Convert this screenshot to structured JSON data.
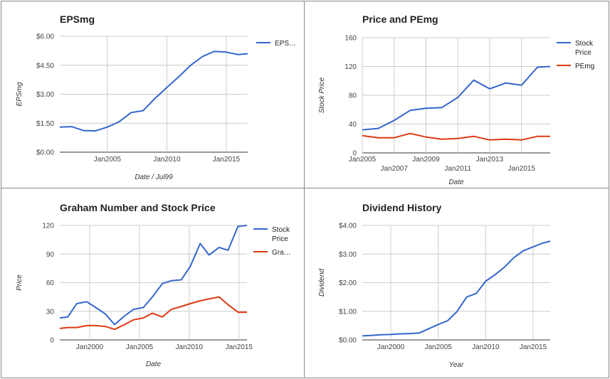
{
  "chart_data": [
    {
      "id": "epsmg",
      "type": "line",
      "title": "EPSmg",
      "xlabel": "Date / Jul99",
      "ylabel": "EPSmg",
      "xlim": [
        2001.0,
        2016.8
      ],
      "ylim": [
        0,
        6
      ],
      "y_ticks": [
        {
          "v": 6,
          "label": "$6.00"
        },
        {
          "v": 4.5,
          "label": "$4.50"
        },
        {
          "v": 3,
          "label": "$3.00"
        },
        {
          "v": 1.5,
          "label": "$1.50"
        },
        {
          "v": 0,
          "label": "$0.00"
        }
      ],
      "x_ticks": [
        {
          "v": 2005,
          "label": "Jan2005"
        },
        {
          "v": 2010,
          "label": "Jan2010"
        },
        {
          "v": 2015,
          "label": "Jan2015"
        }
      ],
      "grid": true,
      "legend_position": "right",
      "series": [
        {
          "name": "EPS…",
          "color": "#3366cc",
          "x": [
            2001.0,
            2002.0,
            2003.0,
            2004.0,
            2005.0,
            2006.0,
            2007.0,
            2008.0,
            2009.0,
            2010.0,
            2011.0,
            2012.0,
            2013.0,
            2014.0,
            2015.0,
            2016.0,
            2016.8
          ],
          "y": [
            1.3,
            1.32,
            1.12,
            1.1,
            1.3,
            1.58,
            2.05,
            2.15,
            2.78,
            3.35,
            3.9,
            4.5,
            4.95,
            5.22,
            5.18,
            5.05,
            5.1
          ]
        }
      ]
    },
    {
      "id": "price-pemg",
      "type": "line",
      "title": "Price and PEmg",
      "xlabel": "Date",
      "ylabel": "Stock Price",
      "xlim": [
        2005.0,
        2016.8
      ],
      "ylim": [
        0,
        160
      ],
      "y_ticks": [
        {
          "v": 160,
          "label": "160"
        },
        {
          "v": 120,
          "label": "120"
        },
        {
          "v": 80,
          "label": "80"
        },
        {
          "v": 40,
          "label": "40"
        },
        {
          "v": 0,
          "label": "0"
        }
      ],
      "x_ticks": [
        {
          "v": 2005,
          "label": "Jan2005",
          "row": 1
        },
        {
          "v": 2007,
          "label": "Jan2007",
          "row": 2
        },
        {
          "v": 2009,
          "label": "Jan2009",
          "row": 1
        },
        {
          "v": 2011,
          "label": "Jan2011",
          "row": 2
        },
        {
          "v": 2013,
          "label": "Jan2013",
          "row": 1
        },
        {
          "v": 2015,
          "label": "Jan2015",
          "row": 2
        }
      ],
      "grid": true,
      "legend_position": "right",
      "series": [
        {
          "name": "Stock Price",
          "name_lines": [
            "Stock",
            "Price"
          ],
          "color": "#3366cc",
          "x": [
            2005.0,
            2006.0,
            2007.0,
            2008.0,
            2009.0,
            2010.0,
            2011.0,
            2012.0,
            2013.0,
            2014.0,
            2015.0,
            2016.0,
            2016.8
          ],
          "y": [
            32,
            34,
            45,
            59,
            62,
            63,
            77,
            101,
            89,
            97,
            94,
            119,
            120
          ]
        },
        {
          "name": "PEmg",
          "name_lines": [
            "PEmg"
          ],
          "color": "#dc3912",
          "x": [
            2005.0,
            2006.0,
            2007.0,
            2008.0,
            2009.0,
            2010.0,
            2011.0,
            2012.0,
            2013.0,
            2014.0,
            2015.0,
            2016.0,
            2016.8
          ],
          "y": [
            24,
            21,
            21,
            27,
            22,
            19,
            20,
            23,
            18,
            19,
            18,
            23,
            23
          ]
        }
      ]
    },
    {
      "id": "graham",
      "type": "line",
      "title": "Graham Number and Stock Price",
      "xlabel": "Date",
      "ylabel": "Price",
      "xlim": [
        1997.0,
        2015.8
      ],
      "ylim": [
        0,
        120
      ],
      "y_ticks": [
        {
          "v": 120,
          "label": "120"
        },
        {
          "v": 90,
          "label": "90"
        },
        {
          "v": 60,
          "label": "60"
        },
        {
          "v": 30,
          "label": "30"
        },
        {
          "v": 0,
          "label": "0"
        }
      ],
      "x_ticks": [
        {
          "v": 2000,
          "label": "Jan2000"
        },
        {
          "v": 2005,
          "label": "Jan2005"
        },
        {
          "v": 2010,
          "label": "Jan2010"
        },
        {
          "v": 2015,
          "label": "Jan2015"
        }
      ],
      "grid": true,
      "legend_position": "right",
      "series": [
        {
          "name": "Stock Price",
          "name_lines": [
            "Stock",
            "Price"
          ],
          "color": "#3366cc",
          "x": [
            1997.0,
            1997.8,
            1998.7,
            1999.7,
            2000.6,
            2001.6,
            2002.5,
            2003.5,
            2004.4,
            2005.4,
            2006.3,
            2007.3,
            2008.2,
            2009.2,
            2010.1,
            2011.1,
            2012.0,
            2013.0,
            2013.9,
            2014.9,
            2015.8
          ],
          "y": [
            23,
            24,
            38,
            40,
            34,
            27,
            16,
            25,
            32,
            34,
            45,
            59,
            62,
            63,
            77,
            101,
            89,
            97,
            94,
            119,
            120
          ]
        },
        {
          "name": "Gra…",
          "name_lines": [
            "Gra…"
          ],
          "color": "#dc3912",
          "x": [
            1997.0,
            1997.8,
            1998.7,
            1999.7,
            2000.6,
            2001.6,
            2002.5,
            2003.5,
            2004.4,
            2005.4,
            2006.3,
            2007.3,
            2008.2,
            2009.2,
            2010.1,
            2011.1,
            2012.0,
            2013.0,
            2013.9,
            2014.9,
            2015.8
          ],
          "y": [
            12,
            13,
            13,
            15,
            15,
            14,
            11,
            16,
            21,
            23,
            28,
            24,
            32,
            35,
            38,
            41,
            43,
            45,
            37,
            29,
            29
          ]
        }
      ]
    },
    {
      "id": "dividend",
      "type": "line",
      "title": "Dividend History",
      "xlabel": "Year",
      "ylabel": "Dividend",
      "xlim": [
        1997.0,
        2016.8
      ],
      "ylim": [
        0,
        4
      ],
      "y_ticks": [
        {
          "v": 4,
          "label": "$4.00"
        },
        {
          "v": 3,
          "label": "$3.00"
        },
        {
          "v": 2,
          "label": "$2.00"
        },
        {
          "v": 1,
          "label": "$1.00"
        },
        {
          "v": 0,
          "label": "$0.00"
        }
      ],
      "x_ticks": [
        {
          "v": 2000,
          "label": "Jan2000"
        },
        {
          "v": 2005,
          "label": "Jan2005"
        },
        {
          "v": 2010,
          "label": "Jan2010"
        },
        {
          "v": 2015,
          "label": "Jan2015"
        }
      ],
      "grid": true,
      "legend_position": "none",
      "series": [
        {
          "name": "",
          "color": "#3366cc",
          "x": [
            1997.0,
            1998.0,
            1999.0,
            2000.0,
            2001.0,
            2002.0,
            2003.0,
            2004.0,
            2005.0,
            2006.0,
            2007.0,
            2008.0,
            2009.0,
            2010.0,
            2011.0,
            2012.0,
            2013.0,
            2014.0,
            2015.0,
            2016.0,
            2016.8
          ],
          "y": [
            0.14,
            0.16,
            0.18,
            0.19,
            0.21,
            0.22,
            0.24,
            0.39,
            0.54,
            0.67,
            1.0,
            1.5,
            1.62,
            2.05,
            2.28,
            2.55,
            2.88,
            3.12,
            3.25,
            3.38,
            3.45
          ]
        }
      ]
    }
  ]
}
